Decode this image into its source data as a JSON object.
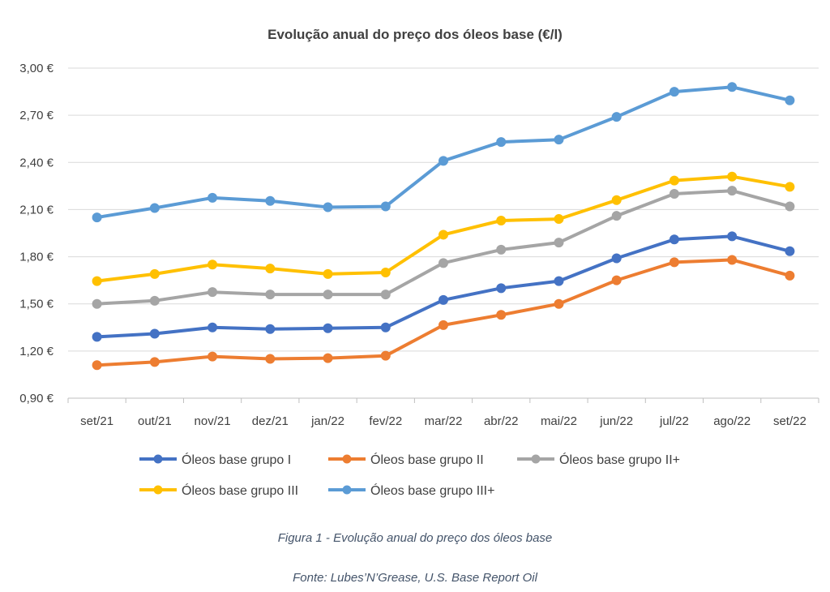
{
  "chart_data": {
    "type": "line",
    "title": "Evolução anual do preço dos óleos base (€/l)",
    "xlabel": "",
    "ylabel": "",
    "ylim": [
      0.9,
      3.0
    ],
    "y_ticks": [
      0.9,
      1.2,
      1.5,
      1.8,
      2.1,
      2.4,
      2.7,
      3.0
    ],
    "y_tick_labels": [
      "0,90 €",
      "1,20 €",
      "1,50 €",
      "1,80 €",
      "2,10 €",
      "2,40 €",
      "2,70 €",
      "3,00 €"
    ],
    "grid": true,
    "legend_position": "bottom",
    "categories": [
      "set/21",
      "out/21",
      "nov/21",
      "dez/21",
      "jan/22",
      "fev/22",
      "mar/22",
      "abr/22",
      "mai/22",
      "jun/22",
      "jul/22",
      "ago/22",
      "set/22"
    ],
    "series": [
      {
        "name": "Óleos base grupo I",
        "color": "#4472c4",
        "values": [
          1.29,
          1.31,
          1.35,
          1.34,
          1.345,
          1.35,
          1.525,
          1.6,
          1.645,
          1.79,
          1.91,
          1.93,
          1.835
        ]
      },
      {
        "name": "Óleos base grupo II",
        "color": "#ed7d31",
        "values": [
          1.11,
          1.13,
          1.165,
          1.15,
          1.155,
          1.17,
          1.365,
          1.43,
          1.5,
          1.65,
          1.765,
          1.78,
          1.68
        ]
      },
      {
        "name": "Óleos base grupo II+",
        "color": "#a5a5a5",
        "values": [
          1.5,
          1.52,
          1.575,
          1.56,
          1.56,
          1.56,
          1.76,
          1.845,
          1.89,
          2.06,
          2.2,
          2.22,
          2.12
        ]
      },
      {
        "name": "Óleos base grupo III",
        "color": "#ffc000",
        "values": [
          1.645,
          1.69,
          1.75,
          1.725,
          1.69,
          1.7,
          1.94,
          2.03,
          2.04,
          2.16,
          2.285,
          2.31,
          2.245
        ]
      },
      {
        "name": "Óleos base grupo III+",
        "color": "#5b9bd5",
        "values": [
          2.05,
          2.11,
          2.175,
          2.155,
          2.115,
          2.12,
          2.41,
          2.53,
          2.545,
          2.69,
          2.85,
          2.88,
          2.795
        ]
      }
    ]
  },
  "captions": {
    "figure": "Figura 1 - Evolução anual do preço dos óleos base",
    "source": "Fonte: Lubes’N’Grease, U.S. Base Report Oil"
  }
}
